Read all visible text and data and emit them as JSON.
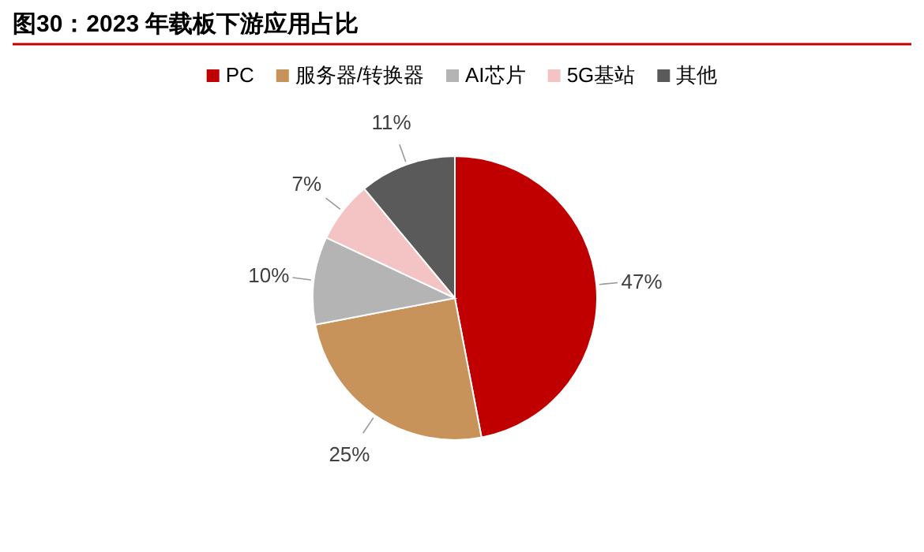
{
  "chart_data": {
    "type": "pie",
    "title": "图30：2023 年载板下游应用占比",
    "categories": [
      "PC",
      "服务器/转换器",
      "AI芯片",
      "5G基站",
      "其他"
    ],
    "values": [
      47,
      25,
      10,
      7,
      11
    ],
    "value_labels": [
      "47%",
      "25%",
      "10%",
      "7%",
      "11%"
    ],
    "colors": [
      "#c00000",
      "#c8935a",
      "#b4b4b4",
      "#f4c4c4",
      "#5a5a5a"
    ],
    "legend": "top"
  }
}
